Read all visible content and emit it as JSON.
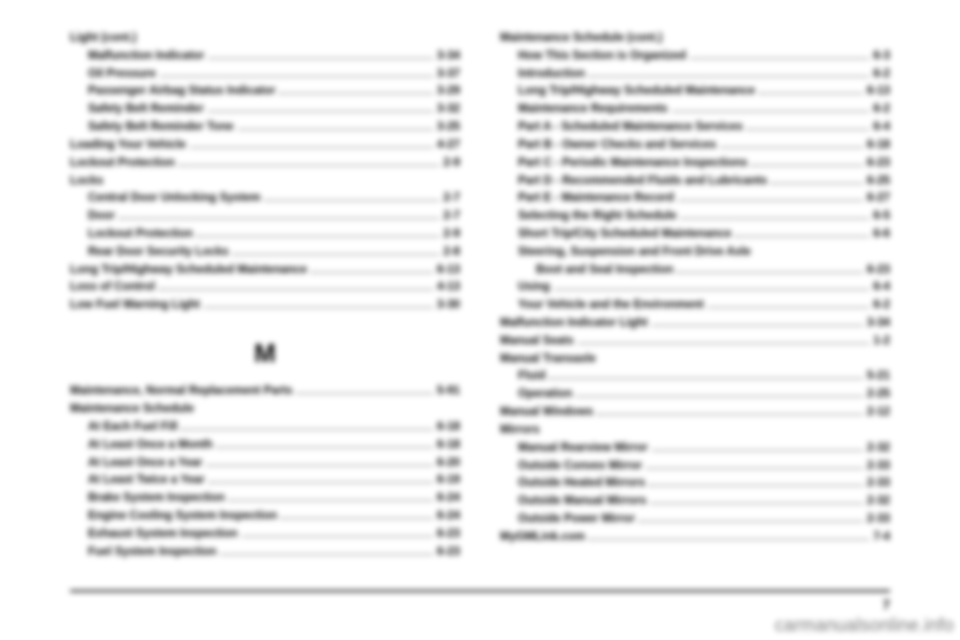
{
  "left": [
    {
      "type": "heading",
      "text": "Light (cont.)"
    },
    {
      "label": "Malfunction Indicator",
      "page": "3-34",
      "indent": 1
    },
    {
      "label": "Oil Pressure",
      "page": "3-37",
      "indent": 1
    },
    {
      "label": "Passenger Airbag Status Indicator",
      "page": "3-29",
      "indent": 1
    },
    {
      "label": "Safety Belt Reminder",
      "page": "3-32",
      "indent": 1
    },
    {
      "label": "Safety Belt Reminder Tone",
      "page": "3-25",
      "indent": 1
    },
    {
      "label": "Loading Your Vehicle",
      "page": "4-27",
      "indent": 0
    },
    {
      "label": "Lockout Protection",
      "page": "2-9",
      "indent": 0
    },
    {
      "type": "heading",
      "text": "Locks"
    },
    {
      "label": "Central Door Unlocking System",
      "page": "2-7",
      "indent": 1
    },
    {
      "label": "Door",
      "page": "2-7",
      "indent": 1
    },
    {
      "label": "Lockout Protection",
      "page": "2-9",
      "indent": 1
    },
    {
      "label": "Rear Door Security Locks",
      "page": "2-8",
      "indent": 1
    },
    {
      "label": "Long Trip/Highway Scheduled Maintenance",
      "page": "6-13",
      "indent": 0
    },
    {
      "label": "Loss of Control",
      "page": "4-13",
      "indent": 0
    },
    {
      "label": "Low Fuel Warning Light",
      "page": "3-30",
      "indent": 0
    },
    {
      "type": "section",
      "text": "M"
    },
    {
      "label": "Maintenance, Normal Replacement Parts",
      "page": "5-91",
      "indent": 0
    },
    {
      "type": "heading",
      "text": "Maintenance Schedule"
    },
    {
      "label": "At Each Fuel Fill",
      "page": "6-18",
      "indent": 1
    },
    {
      "label": "At Least Once a Month",
      "page": "6-18",
      "indent": 1
    },
    {
      "label": "At Least Once a Year",
      "page": "6-20",
      "indent": 1
    },
    {
      "label": "At Least Twice a Year",
      "page": "6-19",
      "indent": 1
    },
    {
      "label": "Brake System Inspection",
      "page": "6-24",
      "indent": 1
    },
    {
      "label": "Engine Cooling System Inspection",
      "page": "6-24",
      "indent": 1
    },
    {
      "label": "Exhaust System Inspection",
      "page": "6-23",
      "indent": 1
    },
    {
      "label": "Fuel System Inspection",
      "page": "6-23",
      "indent": 1
    }
  ],
  "right": [
    {
      "type": "heading",
      "text": "Maintenance Schedule (cont.)"
    },
    {
      "label": "How This Section is Organized",
      "page": "6-3",
      "indent": 1
    },
    {
      "label": "Introduction",
      "page": "6-2",
      "indent": 1
    },
    {
      "label": "Long Trip/Highway Scheduled Maintenance",
      "page": "6-13",
      "indent": 1
    },
    {
      "label": "Maintenance Requirements",
      "page": "6-2",
      "indent": 1
    },
    {
      "label": "Part A - Scheduled Maintenance Services",
      "page": "6-4",
      "indent": 1
    },
    {
      "label": "Part B - Owner Checks and Services",
      "page": "6-18",
      "indent": 1
    },
    {
      "label": "Part C - Periodic Maintenance Inspections",
      "page": "6-23",
      "indent": 1
    },
    {
      "label": "Part D - Recommended Fluids and Lubricants",
      "page": "6-25",
      "indent": 1
    },
    {
      "label": "Part E - Maintenance Record",
      "page": "6-27",
      "indent": 1
    },
    {
      "label": "Selecting the Right Schedule",
      "page": "6-5",
      "indent": 1
    },
    {
      "label": "Short Trip/City Scheduled Maintenance",
      "page": "6-6",
      "indent": 1
    },
    {
      "type": "wrap",
      "line1": "Steering, Suspension and Front Drive Axle",
      "line2": "Boot and Seal Inspection",
      "page": "6-23",
      "indent": 1
    },
    {
      "label": "Using",
      "page": "6-4",
      "indent": 1
    },
    {
      "label": "Your Vehicle and the Environment",
      "page": "6-2",
      "indent": 1
    },
    {
      "label": "Malfunction Indicator Light",
      "page": "3-34",
      "indent": 0
    },
    {
      "label": "Manual Seats",
      "page": "1-2",
      "indent": 0
    },
    {
      "type": "heading",
      "text": "Manual Transaxle"
    },
    {
      "label": "Fluid",
      "page": "5-21",
      "indent": 1
    },
    {
      "label": "Operation",
      "page": "2-25",
      "indent": 1
    },
    {
      "label": "Manual Windows",
      "page": "2-12",
      "indent": 0
    },
    {
      "type": "heading",
      "text": "Mirrors"
    },
    {
      "label": "Manual Rearview Mirror",
      "page": "2-32",
      "indent": 1
    },
    {
      "label": "Outside Convex Mirror",
      "page": "2-33",
      "indent": 1
    },
    {
      "label": "Outside Heated Mirrors",
      "page": "2-33",
      "indent": 1
    },
    {
      "label": "Outside Manual Mirrors",
      "page": "2-32",
      "indent": 1
    },
    {
      "label": "Outside Power Mirror",
      "page": "2-33",
      "indent": 1
    },
    {
      "label": "MyGMLink.com",
      "page": "7-4",
      "indent": 0
    }
  ],
  "footer_page": "7",
  "watermark": "carmanualsonline.info"
}
